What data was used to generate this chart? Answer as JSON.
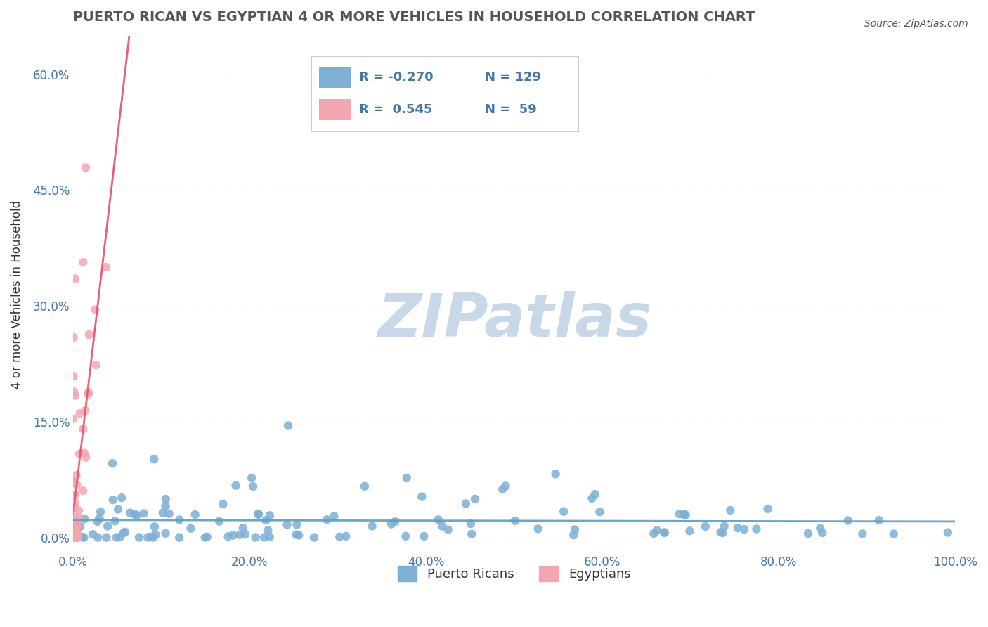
{
  "title": "PUERTO RICAN VS EGYPTIAN 4 OR MORE VEHICLES IN HOUSEHOLD CORRELATION CHART",
  "source_text": "Source: ZipAtlas.com",
  "xlabel": "",
  "ylabel": "4 or more Vehicles in Household",
  "xlim": [
    0,
    1.0
  ],
  "ylim": [
    -0.02,
    0.65
  ],
  "xticks": [
    0.0,
    0.2,
    0.4,
    0.6,
    0.8,
    1.0
  ],
  "xtick_labels": [
    "0.0%",
    "20.0%",
    "40.0%",
    "60.0%",
    "80.0%",
    "100.0%"
  ],
  "yticks": [
    0.0,
    0.15,
    0.3,
    0.45,
    0.6
  ],
  "ytick_labels": [
    "0.0%",
    "15.0%",
    "30.0%",
    "45.0%",
    "60.0%"
  ],
  "legend_r_blue": "-0.270",
  "legend_n_blue": "129",
  "legend_r_pink": "0.545",
  "legend_n_pink": "59",
  "blue_color": "#7EB0D5",
  "pink_color": "#F4A6B0",
  "blue_line_color": "#5B9DC9",
  "pink_line_color": "#E8546A",
  "watermark": "ZIPatlas",
  "watermark_color": "#C8D8E8",
  "blue_seed": 42,
  "pink_seed": 7,
  "n_blue": 129,
  "n_pink": 59,
  "blue_r": -0.27,
  "pink_r": 0.545,
  "background_color": "#FFFFFF",
  "grid_color": "#CCCCCC",
  "title_color": "#555555",
  "axis_color": "#4477AA",
  "figsize": [
    14.06,
    8.92
  ],
  "dpi": 100
}
